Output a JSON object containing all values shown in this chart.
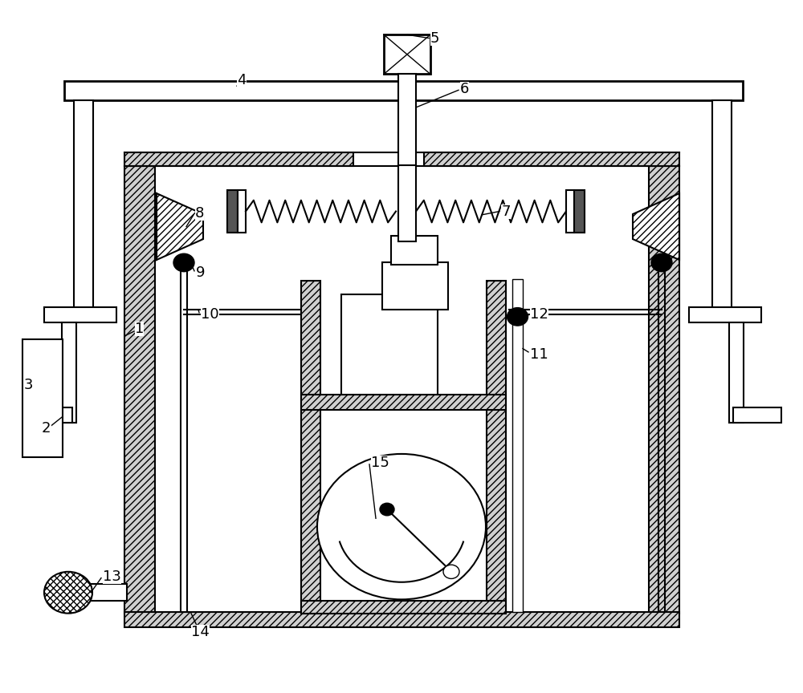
{
  "bg_color": "#ffffff",
  "line_color": "#000000",
  "label_color": "#000000",
  "figsize": [
    10.0,
    8.64
  ],
  "dpi": 100
}
